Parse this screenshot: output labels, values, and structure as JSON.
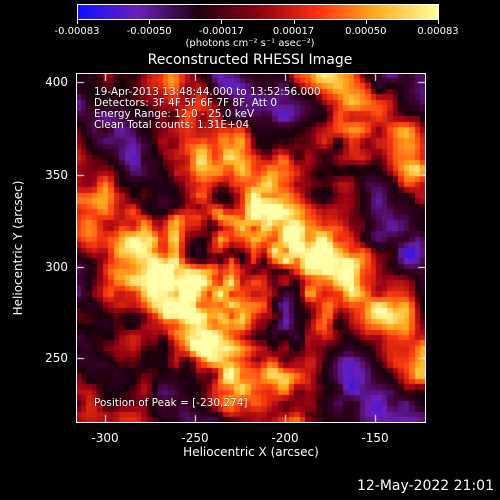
{
  "colorbar": {
    "tick_labels": [
      "-0.00083",
      "-0.00050",
      "-0.00017",
      "0.00017",
      "0.00050",
      "0.00083"
    ],
    "units": "(photons cm⁻² s⁻¹ asec⁻²)",
    "colors": [
      "#1010ff",
      "#6b1fb8",
      "#200010",
      "#8a0010",
      "#ff3010",
      "#ffb020",
      "#ffffa0"
    ]
  },
  "title": "Reconstructed RHESSI Image",
  "annotations": {
    "time_range": "19-Apr-2013 13:48:44.000 to 13:52:56.000",
    "detectors": "Detectors: 3F 4F 5F 6F 7F 8F, Att 0",
    "energy": "Energy Range: 12.0 - 25.0 keV",
    "clean": "Clean     Total counts: 1.31E+04",
    "peak": "Position of Peak = [-230,274]"
  },
  "axes": {
    "x_label": "Heliocentric X (arcsec)",
    "y_label": "Heliocentric Y (arcsec)",
    "x_ticks": [
      "-300",
      "-250",
      "-200",
      "-150"
    ],
    "y_ticks": [
      "400",
      "350",
      "300",
      "250"
    ]
  },
  "timestamp": "12-May-2022 21:01"
}
